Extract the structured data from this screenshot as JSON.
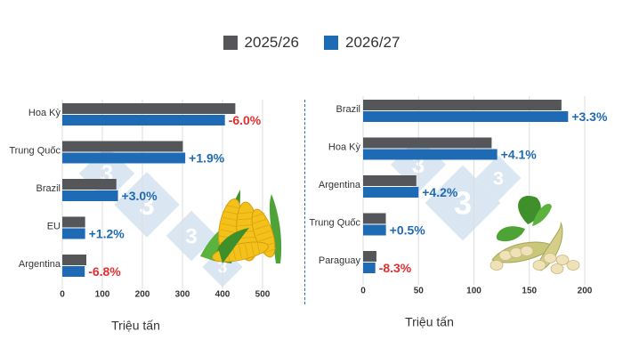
{
  "legend": {
    "series_a": "2025/26",
    "series_b": "2026/27"
  },
  "colors": {
    "series_a": "#54565a",
    "series_b": "#1f6ab5",
    "positive": "#1f6ab5",
    "negative": "#e03030",
    "watermark": "#bcd3e6"
  },
  "chart_data": [
    {
      "type": "bar",
      "orientation": "horizontal",
      "categories": [
        "Hoa Kỳ",
        "Trung Quốc",
        "Brazil",
        "EU",
        "Argentina"
      ],
      "series": [
        {
          "name": "2025/26",
          "values": [
            432,
            301,
            135,
            57,
            60
          ]
        },
        {
          "name": "2026/27",
          "values": [
            406,
            307,
            139,
            57,
            56
          ]
        }
      ],
      "change_labels": [
        "-6.0%",
        "+1.9%",
        "+3.0%",
        "+1.2%",
        "-6.8%"
      ],
      "xlim": [
        0,
        500
      ],
      "xticks": [
        0,
        100,
        200,
        300,
        400,
        500
      ],
      "xlabel": "Triệu tấn",
      "grid": true,
      "illustration": "corn-icon"
    },
    {
      "type": "bar",
      "orientation": "horizontal",
      "categories": [
        "Brazil",
        "Hoa Kỳ",
        "Argentina",
        "Trung Quốc",
        "Paraguay"
      ],
      "series": [
        {
          "name": "2025/26",
          "values": [
            179,
            116,
            48,
            20.5,
            12
          ]
        },
        {
          "name": "2026/27",
          "values": [
            185,
            121,
            50,
            20.6,
            11
          ]
        }
      ],
      "change_labels": [
        "+3.3%",
        "+4.1%",
        "+4.2%",
        "+0.5%",
        "-8.3%"
      ],
      "xlim": [
        0,
        200
      ],
      "xticks": [
        0,
        50,
        100,
        150,
        200
      ],
      "xlabel": "Triệu tấn",
      "grid": true,
      "illustration": "soybean-icon"
    }
  ]
}
